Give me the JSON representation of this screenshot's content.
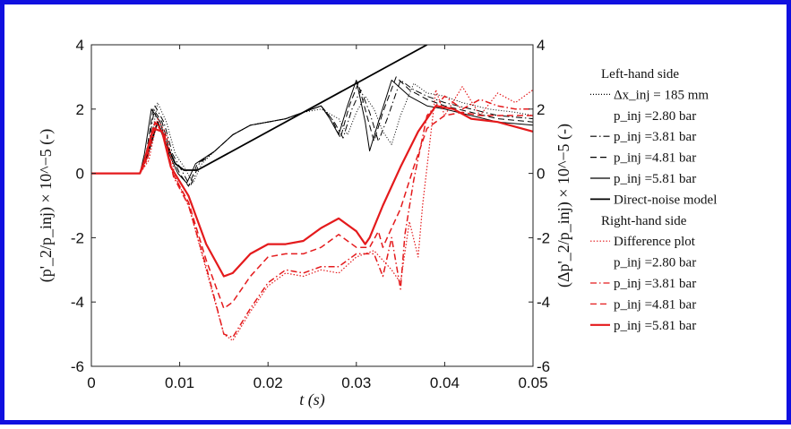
{
  "chart_data": {
    "type": "line",
    "xlabel": "t (s)",
    "ylabel_left": "(p'_2/p_inj) × 10^−5 (-)",
    "ylabel_right": "(Δp'_2/p_inj) × 10^−5 (-)",
    "xlim": [
      0,
      0.05
    ],
    "ylim": [
      -6,
      4
    ],
    "x_ticks": [
      "0",
      "0.01",
      "0.02",
      "0.03",
      "0.04",
      "0.05"
    ],
    "y_ticks": [
      "-6",
      "-4",
      "-2",
      "0",
      "2",
      "4"
    ],
    "legend": [
      {
        "text": "Left-hand side",
        "header": true
      },
      {
        "text": "Δx_inj = 185 mm",
        "color": "#000000",
        "dash": "1,2"
      },
      {
        "text": "p_inj =2.80 bar",
        "header": true
      },
      {
        "text": "p_inj =3.81 bar",
        "color": "#000000",
        "dash": "7,3,1.5,3"
      },
      {
        "text": "p_inj =4.81 bar",
        "color": "#000000",
        "dash": "7,4"
      },
      {
        "text": "p_inj =5.81 bar",
        "color": "#000000",
        "dash": ""
      },
      {
        "text": "Direct-noise model",
        "color": "#000000",
        "dash": "",
        "width": 1.8
      },
      {
        "text": "Right-hand side",
        "header": true
      },
      {
        "text": "Difference plot",
        "color": "#e41a1c",
        "dash": "1.5,2"
      },
      {
        "text": "p_inj =2.80 bar",
        "header": true
      },
      {
        "text": "p_inj =3.81 bar",
        "color": "#e41a1c",
        "dash": "7,3,1.5,3"
      },
      {
        "text": "p_inj =4.81 bar",
        "color": "#e41a1c",
        "dash": "7,4"
      },
      {
        "text": "p_inj =5.81 bar",
        "color": "#e41a1c",
        "dash": "",
        "width": 2.2
      }
    ],
    "series": [
      {
        "name": "Δx_inj = 185 mm p_inj =2.80 bar",
        "side": "left",
        "color": "#000000",
        "dash": "1,2",
        "width": 1,
        "points": [
          [
            0,
            0
          ],
          [
            0.0055,
            0
          ],
          [
            0.0065,
            0.6
          ],
          [
            0.0075,
            2.2
          ],
          [
            0.0085,
            1.6
          ],
          [
            0.0095,
            0.6
          ],
          [
            0.0105,
            0.2
          ],
          [
            0.0115,
            -0.3
          ],
          [
            0.0125,
            0.3
          ],
          [
            0.014,
            0.7
          ],
          [
            0.016,
            1.2
          ],
          [
            0.018,
            1.5
          ],
          [
            0.02,
            1.6
          ],
          [
            0.022,
            1.7
          ],
          [
            0.024,
            1.9
          ],
          [
            0.026,
            2.0
          ],
          [
            0.028,
            1.7
          ],
          [
            0.029,
            1.2
          ],
          [
            0.03,
            1.9
          ],
          [
            0.031,
            2.4
          ],
          [
            0.032,
            2.0
          ],
          [
            0.033,
            1.3
          ],
          [
            0.034,
            0.9
          ],
          [
            0.035,
            1.8
          ],
          [
            0.0365,
            2.8
          ],
          [
            0.038,
            2.5
          ],
          [
            0.04,
            2.4
          ],
          [
            0.042,
            2.2
          ],
          [
            0.045,
            2.0
          ],
          [
            0.048,
            1.9
          ],
          [
            0.05,
            1.8
          ]
        ]
      },
      {
        "name": "Δx_inj = 185 mm p_inj =3.81 bar",
        "side": "left",
        "color": "#000000",
        "dash": "7,3,1.5,3",
        "width": 1,
        "points": [
          [
            0,
            0
          ],
          [
            0.0055,
            0
          ],
          [
            0.0063,
            0.6
          ],
          [
            0.0072,
            2.1
          ],
          [
            0.0082,
            1.6
          ],
          [
            0.0092,
            0.6
          ],
          [
            0.0102,
            0.1
          ],
          [
            0.0112,
            -0.4
          ],
          [
            0.0122,
            0.3
          ],
          [
            0.014,
            0.7
          ],
          [
            0.016,
            1.2
          ],
          [
            0.018,
            1.5
          ],
          [
            0.02,
            1.6
          ],
          [
            0.022,
            1.7
          ],
          [
            0.024,
            1.9
          ],
          [
            0.026,
            2.1
          ],
          [
            0.0275,
            1.6
          ],
          [
            0.0285,
            1.1
          ],
          [
            0.0295,
            2.0
          ],
          [
            0.0305,
            2.6
          ],
          [
            0.0315,
            1.9
          ],
          [
            0.0325,
            1.0
          ],
          [
            0.0335,
            1.7
          ],
          [
            0.035,
            2.9
          ],
          [
            0.0365,
            2.6
          ],
          [
            0.038,
            2.4
          ],
          [
            0.04,
            2.2
          ],
          [
            0.043,
            2.0
          ],
          [
            0.046,
            1.8
          ],
          [
            0.05,
            1.7
          ]
        ]
      },
      {
        "name": "Δx_inj = 185 mm p_inj =4.81 bar",
        "side": "left",
        "color": "#000000",
        "dash": "7,4",
        "width": 1,
        "points": [
          [
            0,
            0
          ],
          [
            0.0055,
            0
          ],
          [
            0.0062,
            0.6
          ],
          [
            0.007,
            2.0
          ],
          [
            0.008,
            1.6
          ],
          [
            0.009,
            0.6
          ],
          [
            0.01,
            0.0
          ],
          [
            0.011,
            -0.4
          ],
          [
            0.012,
            0.3
          ],
          [
            0.014,
            0.7
          ],
          [
            0.016,
            1.2
          ],
          [
            0.018,
            1.5
          ],
          [
            0.02,
            1.6
          ],
          [
            0.022,
            1.7
          ],
          [
            0.024,
            1.9
          ],
          [
            0.026,
            2.1
          ],
          [
            0.0272,
            1.7
          ],
          [
            0.0282,
            1.1
          ],
          [
            0.0292,
            2.1
          ],
          [
            0.0302,
            2.8
          ],
          [
            0.0312,
            1.8
          ],
          [
            0.032,
            1.0
          ],
          [
            0.033,
            1.9
          ],
          [
            0.0345,
            3.0
          ],
          [
            0.036,
            2.6
          ],
          [
            0.038,
            2.3
          ],
          [
            0.04,
            2.1
          ],
          [
            0.043,
            1.9
          ],
          [
            0.046,
            1.7
          ],
          [
            0.05,
            1.6
          ]
        ]
      },
      {
        "name": "Δx_inj = 185 mm p_inj =5.81 bar",
        "side": "left",
        "color": "#000000",
        "dash": "",
        "width": 1,
        "points": [
          [
            0,
            0
          ],
          [
            0.0055,
            0
          ],
          [
            0.006,
            0.6
          ],
          [
            0.0068,
            2.0
          ],
          [
            0.0078,
            1.6
          ],
          [
            0.0088,
            0.6
          ],
          [
            0.0098,
            0.0
          ],
          [
            0.0108,
            -0.3
          ],
          [
            0.0118,
            0.3
          ],
          [
            0.014,
            0.7
          ],
          [
            0.016,
            1.2
          ],
          [
            0.018,
            1.5
          ],
          [
            0.02,
            1.6
          ],
          [
            0.022,
            1.7
          ],
          [
            0.024,
            1.9
          ],
          [
            0.026,
            2.1
          ],
          [
            0.027,
            1.7
          ],
          [
            0.028,
            1.2
          ],
          [
            0.029,
            2.1
          ],
          [
            0.03,
            2.9
          ],
          [
            0.031,
            1.6
          ],
          [
            0.0315,
            0.7
          ],
          [
            0.0325,
            1.6
          ],
          [
            0.034,
            2.9
          ],
          [
            0.036,
            2.4
          ],
          [
            0.038,
            2.1
          ],
          [
            0.04,
            2.0
          ],
          [
            0.043,
            1.8
          ],
          [
            0.046,
            1.6
          ],
          [
            0.05,
            1.5
          ]
        ]
      },
      {
        "name": "Direct-noise model",
        "side": "left",
        "color": "#000000",
        "dash": "",
        "width": 1.8,
        "points": [
          [
            0,
            0
          ],
          [
            0.0055,
            0
          ],
          [
            0.0065,
            0.7
          ],
          [
            0.0075,
            1.6
          ],
          [
            0.0085,
            0.9
          ],
          [
            0.0095,
            0.3
          ],
          [
            0.0105,
            0.1
          ],
          [
            0.012,
            0.1
          ],
          [
            0.038,
            4.0
          ]
        ]
      },
      {
        "name": "Difference plot p_inj =2.80 bar",
        "side": "right",
        "color": "#e41a1c",
        "dash": "1.5,2",
        "width": 1.2,
        "points": [
          [
            0,
            0
          ],
          [
            0.0055,
            0
          ],
          [
            0.0065,
            0.4
          ],
          [
            0.0075,
            1.7
          ],
          [
            0.0085,
            1.2
          ],
          [
            0.0095,
            -0.1
          ],
          [
            0.011,
            -1.0
          ],
          [
            0.013,
            -3.0
          ],
          [
            0.015,
            -5.0
          ],
          [
            0.016,
            -5.2
          ],
          [
            0.018,
            -4.3
          ],
          [
            0.02,
            -3.5
          ],
          [
            0.022,
            -3.1
          ],
          [
            0.024,
            -3.2
          ],
          [
            0.026,
            -3.0
          ],
          [
            0.028,
            -3.1
          ],
          [
            0.03,
            -2.6
          ],
          [
            0.032,
            -2.4
          ],
          [
            0.034,
            -3.0
          ],
          [
            0.035,
            -3.4
          ],
          [
            0.036,
            -1.5
          ],
          [
            0.037,
            -2.6
          ],
          [
            0.0375,
            -1.0
          ],
          [
            0.038,
            0.2
          ],
          [
            0.039,
            2.6
          ],
          [
            0.04,
            1.8
          ],
          [
            0.042,
            2.7
          ],
          [
            0.044,
            1.8
          ],
          [
            0.046,
            2.5
          ],
          [
            0.048,
            2.2
          ],
          [
            0.05,
            2.6
          ]
        ]
      },
      {
        "name": "Difference plot p_inj =3.81 bar",
        "side": "right",
        "color": "#e41a1c",
        "dash": "7,3,1.5,3",
        "width": 1.5,
        "points": [
          [
            0,
            0
          ],
          [
            0.0055,
            0
          ],
          [
            0.0063,
            0.4
          ],
          [
            0.0073,
            1.6
          ],
          [
            0.0083,
            1.2
          ],
          [
            0.0093,
            -0.1
          ],
          [
            0.011,
            -1.0
          ],
          [
            0.013,
            -2.9
          ],
          [
            0.015,
            -5.0
          ],
          [
            0.016,
            -5.1
          ],
          [
            0.018,
            -4.2
          ],
          [
            0.02,
            -3.4
          ],
          [
            0.022,
            -3.0
          ],
          [
            0.024,
            -3.1
          ],
          [
            0.026,
            -2.9
          ],
          [
            0.028,
            -2.9
          ],
          [
            0.03,
            -2.5
          ],
          [
            0.032,
            -2.5
          ],
          [
            0.033,
            -3.2
          ],
          [
            0.034,
            -2.0
          ],
          [
            0.035,
            -3.6
          ],
          [
            0.0355,
            -1.9
          ],
          [
            0.0365,
            -0.2
          ],
          [
            0.038,
            1.8
          ],
          [
            0.04,
            2.4
          ],
          [
            0.042,
            2.0
          ],
          [
            0.044,
            2.3
          ],
          [
            0.046,
            2.1
          ],
          [
            0.048,
            2.0
          ],
          [
            0.05,
            2.0
          ]
        ]
      },
      {
        "name": "Difference plot p_inj =4.81 bar",
        "side": "right",
        "color": "#e41a1c",
        "dash": "7,4",
        "width": 1.5,
        "points": [
          [
            0,
            0
          ],
          [
            0.0055,
            0
          ],
          [
            0.0062,
            0.4
          ],
          [
            0.0072,
            1.6
          ],
          [
            0.0082,
            1.2
          ],
          [
            0.0092,
            0.0
          ],
          [
            0.011,
            -0.9
          ],
          [
            0.013,
            -2.7
          ],
          [
            0.015,
            -4.2
          ],
          [
            0.016,
            -4.0
          ],
          [
            0.018,
            -3.2
          ],
          [
            0.02,
            -2.6
          ],
          [
            0.022,
            -2.5
          ],
          [
            0.024,
            -2.5
          ],
          [
            0.026,
            -2.3
          ],
          [
            0.028,
            -1.9
          ],
          [
            0.03,
            -2.3
          ],
          [
            0.0315,
            -2.3
          ],
          [
            0.0325,
            -1.8
          ],
          [
            0.033,
            -2.3
          ],
          [
            0.034,
            -1.7
          ],
          [
            0.035,
            -1.1
          ],
          [
            0.0365,
            0.2
          ],
          [
            0.038,
            1.4
          ],
          [
            0.04,
            1.8
          ],
          [
            0.042,
            1.9
          ],
          [
            0.044,
            1.8
          ],
          [
            0.046,
            1.8
          ],
          [
            0.05,
            1.8
          ]
        ]
      },
      {
        "name": "Difference plot p_inj =5.81 bar",
        "side": "right",
        "color": "#e41a1c",
        "dash": "",
        "width": 2.2,
        "points": [
          [
            0,
            0
          ],
          [
            0.0055,
            0
          ],
          [
            0.006,
            0.4
          ],
          [
            0.007,
            1.4
          ],
          [
            0.008,
            1.3
          ],
          [
            0.009,
            0.2
          ],
          [
            0.011,
            -0.7
          ],
          [
            0.013,
            -2.2
          ],
          [
            0.015,
            -3.2
          ],
          [
            0.016,
            -3.1
          ],
          [
            0.018,
            -2.5
          ],
          [
            0.02,
            -2.2
          ],
          [
            0.022,
            -2.2
          ],
          [
            0.024,
            -2.1
          ],
          [
            0.026,
            -1.7
          ],
          [
            0.028,
            -1.4
          ],
          [
            0.03,
            -1.8
          ],
          [
            0.031,
            -2.2
          ],
          [
            0.0315,
            -2.0
          ],
          [
            0.033,
            -1.0
          ],
          [
            0.035,
            0.2
          ],
          [
            0.037,
            1.3
          ],
          [
            0.039,
            2.1
          ],
          [
            0.041,
            2.0
          ],
          [
            0.043,
            1.7
          ],
          [
            0.046,
            1.6
          ],
          [
            0.05,
            1.3
          ]
        ]
      }
    ]
  }
}
